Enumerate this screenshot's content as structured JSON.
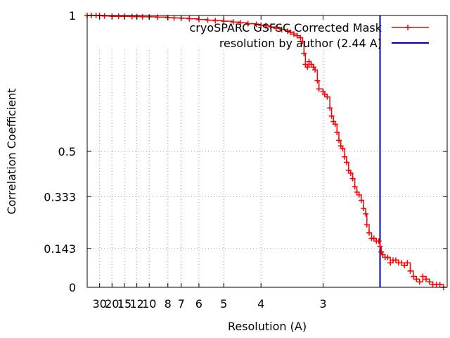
{
  "chart_data": {
    "type": "line",
    "xlabel": "Resolution (A)",
    "ylabel": "Correlation Coefficient",
    "x_scale": "reciprocal",
    "xlim": [
      60,
      2.0
    ],
    "ylim": [
      0,
      1
    ],
    "grid": true,
    "legend_position": "top-right",
    "x_ticks": [
      {
        "label": "30",
        "value": 30
      },
      {
        "label": "20",
        "value": 20
      },
      {
        "label": "15",
        "value": 15
      },
      {
        "label": "12",
        "value": 12
      },
      {
        "label": "10",
        "value": 10
      },
      {
        "label": "8",
        "value": 8
      },
      {
        "label": "7",
        "value": 7
      },
      {
        "label": "6",
        "value": 6
      },
      {
        "label": "5",
        "value": 5
      },
      {
        "label": "4",
        "value": 4
      },
      {
        "label": "3",
        "value": 3
      }
    ],
    "y_ticks": [
      {
        "label": "0",
        "value": 0
      },
      {
        "label": "0.143",
        "value": 0.143
      },
      {
        "label": "0.333",
        "value": 0.333
      },
      {
        "label": "0.5",
        "value": 0.5
      },
      {
        "label": "1",
        "value": 1
      }
    ],
    "series": [
      {
        "name": "cryoSPARC GSFSC Corrected Mask",
        "color": "#ff0000",
        "marker": "plus",
        "points": [
          [
            60,
            1.0
          ],
          [
            45,
            1.0
          ],
          [
            35,
            1.0
          ],
          [
            30,
            1.0
          ],
          [
            25,
            0.998
          ],
          [
            20,
            0.997
          ],
          [
            17,
            0.997
          ],
          [
            15,
            0.997
          ],
          [
            13,
            0.996
          ],
          [
            12,
            0.996
          ],
          [
            11,
            0.995
          ],
          [
            10,
            0.995
          ],
          [
            9,
            0.994
          ],
          [
            8,
            0.992
          ],
          [
            7.5,
            0.991
          ],
          [
            7,
            0.99
          ],
          [
            6.5,
            0.988
          ],
          [
            6,
            0.985
          ],
          [
            5.6,
            0.983
          ],
          [
            5.3,
            0.981
          ],
          [
            5,
            0.979
          ],
          [
            4.7,
            0.976
          ],
          [
            4.5,
            0.973
          ],
          [
            4.3,
            0.97
          ],
          [
            4.1,
            0.967
          ],
          [
            4.0,
            0.964
          ],
          [
            3.9,
            0.962
          ],
          [
            3.8,
            0.958
          ],
          [
            3.7,
            0.953
          ],
          [
            3.6,
            0.948
          ],
          [
            3.5,
            0.942
          ],
          [
            3.45,
            0.938
          ],
          [
            3.4,
            0.932
          ],
          [
            3.35,
            0.926
          ],
          [
            3.3,
            0.918
          ],
          [
            3.27,
            0.905
          ],
          [
            3.25,
            0.86
          ],
          [
            3.23,
            0.82
          ],
          [
            3.2,
            0.81
          ],
          [
            3.18,
            0.83
          ],
          [
            3.15,
            0.82
          ],
          [
            3.12,
            0.81
          ],
          [
            3.1,
            0.8
          ],
          [
            3.07,
            0.76
          ],
          [
            3.05,
            0.73
          ],
          [
            3.0,
            0.72
          ],
          [
            2.98,
            0.71
          ],
          [
            2.95,
            0.7
          ],
          [
            2.92,
            0.66
          ],
          [
            2.9,
            0.63
          ],
          [
            2.88,
            0.61
          ],
          [
            2.86,
            0.6
          ],
          [
            2.84,
            0.57
          ],
          [
            2.82,
            0.54
          ],
          [
            2.8,
            0.52
          ],
          [
            2.78,
            0.51
          ],
          [
            2.76,
            0.48
          ],
          [
            2.74,
            0.46
          ],
          [
            2.72,
            0.43
          ],
          [
            2.7,
            0.42
          ],
          [
            2.68,
            0.4
          ],
          [
            2.66,
            0.37
          ],
          [
            2.64,
            0.35
          ],
          [
            2.62,
            0.34
          ],
          [
            2.6,
            0.32
          ],
          [
            2.58,
            0.29
          ],
          [
            2.56,
            0.27
          ],
          [
            2.55,
            0.23
          ],
          [
            2.53,
            0.2
          ],
          [
            2.51,
            0.18
          ],
          [
            2.49,
            0.18
          ],
          [
            2.47,
            0.17
          ],
          [
            2.45,
            0.17
          ],
          [
            2.44,
            0.15
          ],
          [
            2.43,
            0.13
          ],
          [
            2.42,
            0.12
          ],
          [
            2.4,
            0.11
          ],
          [
            2.38,
            0.11
          ],
          [
            2.36,
            0.09
          ],
          [
            2.34,
            0.1
          ],
          [
            2.32,
            0.1
          ],
          [
            2.3,
            0.09
          ],
          [
            2.28,
            0.09
          ],
          [
            2.26,
            0.08
          ],
          [
            2.24,
            0.09
          ],
          [
            2.22,
            0.06
          ],
          [
            2.2,
            0.04
          ],
          [
            2.18,
            0.03
          ],
          [
            2.16,
            0.02
          ],
          [
            2.14,
            0.04
          ],
          [
            2.12,
            0.03
          ],
          [
            2.1,
            0.02
          ],
          [
            2.08,
            0.01
          ],
          [
            2.06,
            0.01
          ],
          [
            2.04,
            0.01
          ],
          [
            2.02,
            0.0
          ]
        ]
      },
      {
        "name": "resolution by author (2.44 A)",
        "color": "#0000aa",
        "type": "vertical-line",
        "x": 2.44
      }
    ]
  }
}
